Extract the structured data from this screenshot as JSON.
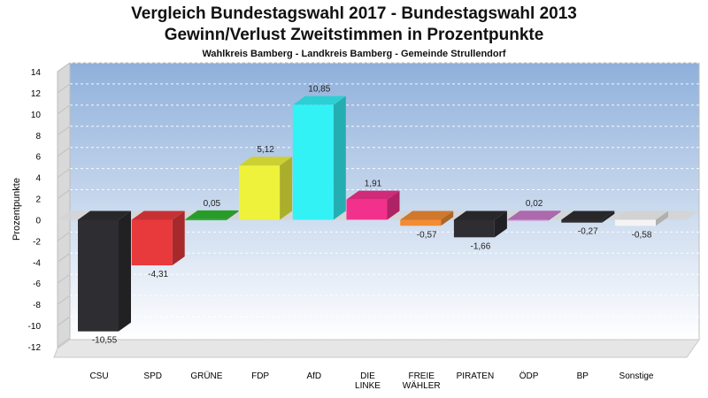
{
  "title": "Vergleich Bundestagswahl 2017 - Bundestagswahl 2013",
  "subtitle": "Gewinn/Verlust Zweitstimmen in Prozentpunkte",
  "location": "Wahlkreis Bamberg - Landkreis Bamberg - Gemeinde Strullendorf",
  "chart_data": {
    "type": "bar",
    "ylabel": "Prozentpunkte",
    "ylim": [
      -12,
      14
    ],
    "yticks": [
      14,
      12,
      10,
      8,
      6,
      4,
      2,
      0,
      -2,
      -4,
      -6,
      -8,
      -10,
      -12
    ],
    "grid": true,
    "categories": [
      [
        "CSU"
      ],
      [
        "SPD"
      ],
      [
        "GRÜNE"
      ],
      [
        "FDP"
      ],
      [
        "AfD"
      ],
      [
        "DIE",
        "LINKE"
      ],
      [
        "FREIE",
        "WÄHLER"
      ],
      [
        "PIRATEN"
      ],
      [
        "ÖDP"
      ],
      [
        "BP"
      ],
      [
        "Sonstige"
      ]
    ],
    "values": [
      -10.55,
      -4.31,
      0.05,
      5.12,
      10.85,
      1.91,
      -0.57,
      -1.66,
      0.02,
      -0.27,
      -0.58
    ],
    "value_labels": [
      "-10,55",
      "-4,31",
      "0,05",
      "5,12",
      "10,85",
      "1,91",
      "-0,57",
      "-1,66",
      "0,02",
      "-0,27",
      "-0,58"
    ],
    "colors": [
      "#2e2e32",
      "#e8393c",
      "#2fb52f",
      "#eef23a",
      "#33f2f6",
      "#f2318c",
      "#f28c33",
      "#2e2e32",
      "#c87ac8",
      "#2e2e32",
      "#f4f4f4"
    ]
  }
}
